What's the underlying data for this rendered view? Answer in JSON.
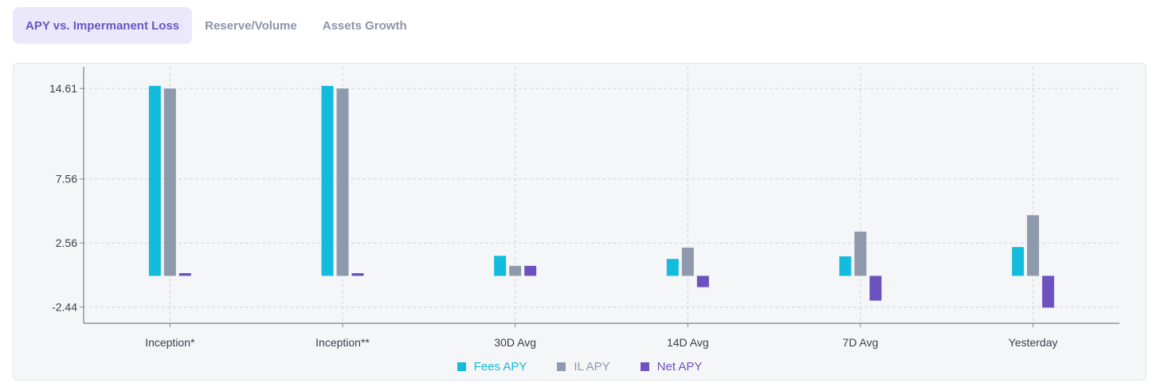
{
  "tabs": [
    {
      "label": "APY vs. Impermanent Loss",
      "active": true
    },
    {
      "label": "Reserve/Volume",
      "active": false
    },
    {
      "label": "Assets Growth",
      "active": false
    }
  ],
  "chart_data": {
    "type": "bar",
    "categories": [
      "Inception*",
      "Inception**",
      "30D Avg",
      "14D Avg",
      "7D Avg",
      "Yesterday"
    ],
    "series": [
      {
        "name": "Fees APY",
        "color": "#13bcdc",
        "values": [
          14.82,
          14.82,
          1.56,
          1.32,
          1.52,
          2.25
        ]
      },
      {
        "name": "IL APY",
        "color": "#8e99ab",
        "values": [
          14.61,
          14.61,
          0.78,
          2.2,
          3.45,
          4.73
        ]
      },
      {
        "name": "Net APY",
        "color": "#6c52bf",
        "values": [
          0.21,
          0.21,
          0.78,
          -0.88,
          -1.93,
          -2.48
        ]
      }
    ],
    "yticks": [
      14.61,
      7.56,
      2.56,
      -2.44
    ],
    "ylim": [
      -3.7,
      16.3
    ],
    "grid": true,
    "legend_position": "bottom-center"
  }
}
